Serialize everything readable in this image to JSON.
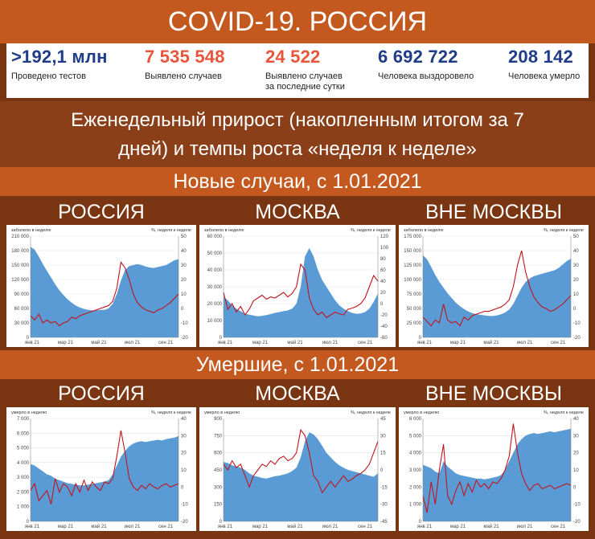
{
  "header": {
    "title": "COVID-19. РОССИЯ"
  },
  "stats": [
    {
      "value": ">192,1 млн",
      "label": "Проведено тестов",
      "color": "#1f3c88"
    },
    {
      "value": "7 535 548",
      "label": "Выявлено случаев",
      "color": "#e8553a"
    },
    {
      "value": "24 522",
      "label": "Выявлено случаев\nза последние сутки",
      "color": "#e8553a"
    },
    {
      "value": "6 692 722",
      "label": "Человека выздоровело",
      "color": "#1f3c88"
    },
    {
      "value": "208 142",
      "label": "Человека умерло",
      "color": "#1f3c88"
    }
  ],
  "description": {
    "line1": "Еженедельный прирост (накопленным итогом за 7",
    "line2": "дней) и темпы роста «неделя к неделе»"
  },
  "sections": [
    {
      "title": "Новые случаи, с 1.01.2021",
      "region_labels": [
        "РОССИЯ",
        "МОСКВА",
        "ВНЕ МОСКВЫ"
      ]
    },
    {
      "title": "Умершие, с 1.01.2021",
      "region_labels": [
        "РОССИЯ",
        "МОСКВА",
        "ВНЕ МОСКВЫ"
      ]
    }
  ],
  "colors": {
    "area": "#5b9bd5",
    "line": "#c0141b",
    "band": "#c4591f",
    "band_dark": "#7a3612"
  },
  "chart_data": [
    {
      "type": "area",
      "left_caption": "заболело в неделю",
      "right_caption": "%, неделя к неделе",
      "x_ticks": [
        "янв 21",
        "мар 21",
        "май 21",
        "июл 21",
        "сен 21"
      ],
      "y_ticks": [
        "210 000",
        "180 000",
        "150 000",
        "120 000",
        "90 000",
        "60 000",
        "30 000",
        "0"
      ],
      "ylim": [
        0,
        210000
      ],
      "y2_ticks": [
        "50",
        "40",
        "30",
        "20",
        "10",
        "0",
        "-10",
        "-20"
      ],
      "y2lim": [
        -20,
        50
      ],
      "series": [
        {
          "kind": "area",
          "values": [
            188000,
            182000,
            168000,
            152000,
            138000,
            124000,
            110000,
            98000,
            88000,
            79000,
            72000,
            66000,
            62000,
            59000,
            57000,
            56000,
            56000,
            57000,
            57000,
            60000,
            70000,
            90000,
            118000,
            140000,
            148000,
            150000,
            152000,
            150000,
            147000,
            145000,
            144000,
            146000,
            148000,
            150000,
            155000,
            160000,
            162000
          ]
        },
        {
          "kind": "line",
          "values": [
            -5,
            -8,
            -4,
            -10,
            -8,
            -10,
            -9,
            -12,
            -10,
            -9,
            -6,
            -7,
            -5,
            -4,
            -3,
            -2,
            -1,
            0,
            1,
            2,
            5,
            14,
            32,
            28,
            20,
            10,
            4,
            1,
            -1,
            -2,
            -3,
            -1,
            0,
            2,
            4,
            7,
            10
          ]
        }
      ]
    },
    {
      "type": "area",
      "left_caption": "заболело в неделю",
      "right_caption": "%, неделя к неделе",
      "x_ticks": [
        "янв 21",
        "мар 21",
        "май 21",
        "июл 21",
        "сен 21"
      ],
      "y_ticks": [
        "60 000",
        "50 000",
        "40 000",
        "30 000",
        "20 000",
        "10 000",
        "0"
      ],
      "ylim": [
        0,
        60000
      ],
      "y2_ticks": [
        "120",
        "100",
        "80",
        "60",
        "40",
        "20",
        "0",
        "-20",
        "-40",
        "-60"
      ],
      "y2lim": [
        -60,
        120
      ],
      "series": [
        {
          "kind": "area",
          "values": [
            24000,
            22000,
            19000,
            17000,
            15500,
            14000,
            13500,
            13000,
            12500,
            12800,
            13200,
            13800,
            14500,
            15000,
            15500,
            16000,
            17000,
            20000,
            30000,
            48000,
            53000,
            48000,
            40000,
            34000,
            30000,
            26000,
            22000,
            19000,
            17000,
            15500,
            14500,
            14000,
            14200,
            15000,
            17000,
            21000,
            26000
          ]
        },
        {
          "kind": "line",
          "values": [
            20,
            -10,
            0,
            -15,
            -5,
            -20,
            -10,
            5,
            10,
            15,
            8,
            12,
            10,
            15,
            20,
            12,
            18,
            30,
            70,
            60,
            10,
            -10,
            -20,
            -15,
            -25,
            -20,
            -15,
            -18,
            -20,
            -10,
            -8,
            -5,
            0,
            10,
            30,
            50,
            40
          ]
        }
      ]
    },
    {
      "type": "area",
      "left_caption": "заболело в неделю",
      "right_caption": "%, неделя к неделе",
      "x_ticks": [
        "янв 21",
        "мар 21",
        "май 21",
        "июл 21",
        "сен 21"
      ],
      "y_ticks": [
        "175 000",
        "150 000",
        "125 000",
        "100 000",
        "75 000",
        "50 000",
        "25 000",
        "0"
      ],
      "ylim": [
        0,
        175000
      ],
      "y2_ticks": [
        "50",
        "40",
        "30",
        "20",
        "10",
        "0",
        "-10",
        "-20"
      ],
      "y2lim": [
        -20,
        50
      ],
      "series": [
        {
          "kind": "area",
          "values": [
            142000,
            135000,
            122000,
            108000,
            96000,
            86000,
            76000,
            68000,
            60000,
            54000,
            49000,
            45000,
            42000,
            40000,
            39000,
            38000,
            37000,
            37000,
            38000,
            40000,
            43000,
            48000,
            58000,
            72000,
            86000,
            96000,
            102000,
            106000,
            108000,
            110000,
            112000,
            114000,
            116000,
            120000,
            126000,
            132000,
            136000
          ]
        },
        {
          "kind": "line",
          "values": [
            -6,
            -9,
            -12,
            -8,
            -10,
            3,
            -8,
            -10,
            -9,
            -12,
            -6,
            -8,
            -5,
            -4,
            -3,
            -2,
            -2,
            -1,
            0,
            1,
            3,
            6,
            15,
            30,
            40,
            25,
            15,
            8,
            4,
            1,
            0,
            -2,
            -1,
            1,
            3,
            6,
            9
          ]
        }
      ]
    },
    {
      "type": "area",
      "left_caption": "умерло в неделю",
      "right_caption": "%, неделя к неделе",
      "x_ticks": [
        "янв 21",
        "мар 21",
        "май 21",
        "июл 21",
        "сен 21"
      ],
      "y_ticks": [
        "7 000",
        "6 000",
        "5 000",
        "4 000",
        "3 000",
        "2 000",
        "1 000",
        "0"
      ],
      "ylim": [
        0,
        7000
      ],
      "y2_ticks": [
        "40",
        "30",
        "20",
        "10",
        "0",
        "-10",
        "-20"
      ],
      "y2lim": [
        -20,
        40
      ],
      "series": [
        {
          "kind": "area",
          "values": [
            3900,
            3800,
            3600,
            3400,
            3200,
            3100,
            2900,
            2800,
            2700,
            2600,
            2550,
            2500,
            2450,
            2450,
            2500,
            2550,
            2600,
            2650,
            2700,
            2800,
            3200,
            3800,
            4400,
            4800,
            5100,
            5300,
            5400,
            5450,
            5400,
            5450,
            5500,
            5550,
            5500,
            5600,
            5650,
            5700,
            5800
          ]
        },
        {
          "kind": "line",
          "values": [
            -2,
            2,
            -8,
            -5,
            -2,
            -10,
            5,
            -3,
            2,
            0,
            -5,
            2,
            -3,
            4,
            -2,
            3,
            0,
            -2,
            3,
            2,
            5,
            18,
            33,
            20,
            5,
            0,
            -2,
            1,
            -1,
            2,
            0,
            -1,
            1,
            2,
            0,
            1,
            2
          ]
        }
      ]
    },
    {
      "type": "area",
      "left_caption": "умерло в неделю",
      "right_caption": "%, неделя к неделе",
      "x_ticks": [
        "янв 21",
        "мар 21",
        "май 21",
        "июл 21",
        "сен 21"
      ],
      "y_ticks": [
        "900",
        "750",
        "600",
        "450",
        "300",
        "150",
        "0"
      ],
      "ylim": [
        0,
        900
      ],
      "y2_ticks": [
        "45",
        "30",
        "15",
        "0",
        "-15",
        "-30",
        "-45"
      ],
      "y2lim": [
        -45,
        45
      ],
      "series": [
        {
          "kind": "area",
          "values": [
            520,
            510,
            490,
            480,
            470,
            450,
            420,
            400,
            390,
            380,
            375,
            385,
            395,
            400,
            410,
            420,
            440,
            470,
            560,
            700,
            780,
            760,
            720,
            660,
            600,
            560,
            520,
            490,
            470,
            450,
            440,
            430,
            420,
            410,
            400,
            390,
            420
          ]
        },
        {
          "kind": "line",
          "values": [
            5,
            0,
            8,
            2,
            5,
            -5,
            -15,
            -5,
            0,
            5,
            3,
            8,
            5,
            10,
            12,
            8,
            10,
            15,
            35,
            30,
            15,
            -5,
            -10,
            -20,
            -15,
            -10,
            -15,
            -10,
            -5,
            -10,
            -8,
            -5,
            -3,
            0,
            5,
            15,
            25
          ]
        }
      ]
    },
    {
      "type": "area",
      "left_caption": "умерло в неделю",
      "right_caption": "%, неделя к неделе",
      "x_ticks": [
        "янв 21",
        "мар 21",
        "май 21",
        "июл 21",
        "сен 21"
      ],
      "y_ticks": [
        "6 000",
        "5 000",
        "4 000",
        "3 000",
        "2 000",
        "1 000",
        "0"
      ],
      "ylim": [
        0,
        6000
      ],
      "y2_ticks": [
        "40",
        "30",
        "20",
        "10",
        "0",
        "-10",
        "-20"
      ],
      "y2lim": [
        -20,
        40
      ],
      "series": [
        {
          "kind": "area",
          "values": [
            3300,
            3200,
            3100,
            2900,
            2800,
            3500,
            3200,
            3000,
            2800,
            2700,
            2650,
            2600,
            2550,
            2500,
            2500,
            2450,
            2500,
            2550,
            2600,
            2700,
            3000,
            3500,
            4000,
            4500,
            4800,
            5000,
            5100,
            5150,
            5100,
            5150,
            5200,
            5250,
            5200,
            5250,
            5300,
            5350,
            5400
          ]
        },
        {
          "kind": "line",
          "values": [
            -5,
            -15,
            3,
            -10,
            10,
            25,
            -5,
            -10,
            -2,
            3,
            -5,
            2,
            -3,
            4,
            0,
            2,
            -1,
            3,
            2,
            5,
            10,
            18,
            37,
            20,
            8,
            2,
            -2,
            1,
            2,
            -1,
            0,
            1,
            -1,
            0,
            1,
            2,
            1
          ]
        }
      ]
    }
  ]
}
